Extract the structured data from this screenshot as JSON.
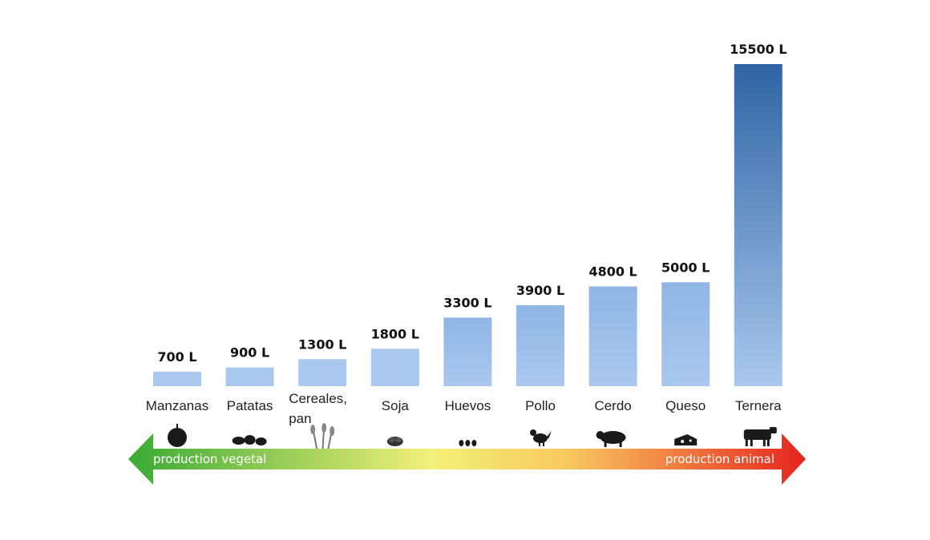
{
  "chart_data": {
    "type": "bar",
    "categories": [
      "Manzanas",
      "Patatas",
      "Cereales, pan",
      "Soja",
      "Huevos",
      "Pollo",
      "Cerdo",
      "Queso",
      "Ternera"
    ],
    "values": [
      700,
      900,
      1300,
      1800,
      3300,
      3900,
      4800,
      5000,
      15500
    ],
    "data_labels": [
      "700 L",
      "900 L",
      "1300 L",
      "1800 L",
      "3300 L",
      "3900 L",
      "4800 L",
      "5000 L",
      "15500 L"
    ],
    "icons": [
      "apple-icon",
      "potatoes-icon",
      "wheat-icon",
      "soybeans-icon",
      "eggs-icon",
      "chicken-icon",
      "pig-icon",
      "cheese-icon",
      "cow-icon"
    ],
    "title": "",
    "xlabel": "",
    "ylabel": "",
    "ylim": [
      0,
      15500
    ],
    "grid": false,
    "legend": "none",
    "colors": {
      "bar_light": "#a9c8ee",
      "bar_dark": "#2f64a4",
      "arrow_green": "#3aaa35",
      "arrow_yellow": "#f3f07a",
      "arrow_red": "#e6231e"
    }
  },
  "arrow": {
    "left_label": "production vegetal",
    "right_label": "production animal"
  }
}
